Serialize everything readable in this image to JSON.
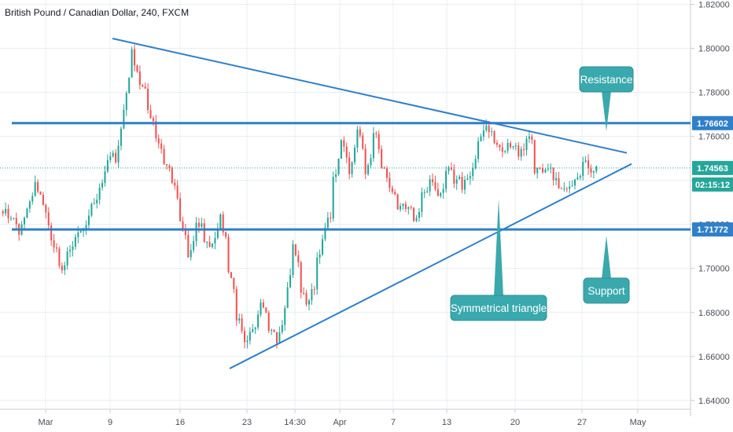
{
  "chart_data": {
    "type": "candlestick",
    "title": "British Pound / Canadian Dollar, 240, FXCM",
    "y_axis": {
      "ticks": [
        "1.82000",
        "1.80000",
        "1.78000",
        "1.76000",
        "1.74000",
        "1.72000",
        "1.70000",
        "1.68000",
        "1.66000",
        "1.64000"
      ],
      "range": [
        1.636,
        1.822
      ]
    },
    "x_axis": {
      "ticks": [
        "Mar",
        "9",
        "16",
        "23",
        "14:30",
        "Apr",
        "7",
        "13",
        "20",
        "27",
        "May"
      ]
    },
    "current_price": {
      "value": "1.74563",
      "countdown": "02:15:12",
      "color": "#26a69a"
    },
    "horizontal_levels": [
      {
        "label": "1.76602",
        "value": 1.76602,
        "name": "Resistance"
      },
      {
        "label": "1.71772",
        "value": 1.71772,
        "name": "Support"
      }
    ],
    "trendlines": [
      {
        "name": "upper",
        "from": {
          "date": "Mar 9",
          "price": 1.8045
        },
        "to": {
          "date": "Apr 29",
          "price": 1.7525
        }
      },
      {
        "name": "lower",
        "from": {
          "date": "Mar 21",
          "price": 1.6545
        },
        "to": {
          "date": "Apr 29",
          "price": 1.7475
        }
      }
    ],
    "callouts": [
      "Resistance",
      "Support",
      "Symmetrical triangle"
    ],
    "colors": {
      "up": "#26a69a",
      "down": "#ef5350",
      "line": "#2f7fc9",
      "callout": "#3aa9ad",
      "grid": "#e9ecf1"
    },
    "grid": true,
    "path": [
      [
        1.728,
        1.727
      ],
      [
        1.722,
        1.724
      ],
      [
        1.718,
        1.716
      ],
      [
        1.725,
        1.727
      ],
      [
        1.735,
        1.738
      ],
      [
        1.732,
        1.728
      ],
      [
        1.718,
        1.712
      ],
      [
        1.705,
        1.7
      ],
      [
        1.702,
        1.706
      ],
      [
        1.711,
        1.714
      ],
      [
        1.716,
        1.718
      ],
      [
        1.725,
        1.73
      ],
      [
        1.733,
        1.737
      ],
      [
        1.745,
        1.749
      ],
      [
        1.752,
        1.75
      ],
      [
        1.77,
        1.772
      ],
      [
        1.796,
        1.798
      ],
      [
        1.786,
        1.784
      ],
      [
        1.778,
        1.772
      ],
      [
        1.765,
        1.76
      ],
      [
        1.752,
        1.748
      ],
      [
        1.744,
        1.74
      ],
      [
        1.728,
        1.72
      ],
      [
        1.712,
        1.705
      ],
      [
        1.715,
        1.719
      ],
      [
        1.72,
        1.713
      ],
      [
        1.709,
        1.712
      ],
      [
        1.719,
        1.723
      ],
      [
        1.708,
        1.7
      ],
      [
        1.688,
        1.678
      ],
      [
        1.67,
        1.666
      ],
      [
        1.674,
        1.672
      ],
      [
        1.68,
        1.683
      ],
      [
        1.676,
        1.67
      ],
      [
        1.673,
        1.668
      ],
      [
        1.68,
        1.684
      ],
      [
        1.705,
        1.71
      ],
      [
        1.698,
        1.69
      ],
      [
        1.682,
        1.686
      ],
      [
        1.695,
        1.705
      ],
      [
        1.715,
        1.718
      ],
      [
        1.728,
        1.74
      ],
      [
        1.752,
        1.758
      ],
      [
        1.748,
        1.744
      ],
      [
        1.76,
        1.765
      ],
      [
        1.748,
        1.742
      ],
      [
        1.757,
        1.763
      ],
      [
        1.752,
        1.745
      ],
      [
        1.742,
        1.735
      ],
      [
        1.73,
        1.725
      ],
      [
        1.732,
        1.728
      ],
      [
        1.725,
        1.722
      ],
      [
        1.728,
        1.733
      ],
      [
        1.737,
        1.74
      ],
      [
        1.735,
        1.732
      ],
      [
        1.74,
        1.745
      ],
      [
        1.742,
        1.738
      ],
      [
        1.741,
        1.737
      ],
      [
        1.745,
        1.742
      ],
      [
        1.752,
        1.756
      ],
      [
        1.768,
        1.765
      ],
      [
        1.76,
        1.757
      ],
      [
        1.754,
        1.752
      ],
      [
        1.758,
        1.757
      ],
      [
        1.755,
        1.752
      ],
      [
        1.756,
        1.76
      ],
      [
        1.758,
        1.745
      ],
      [
        1.744,
        1.742
      ],
      [
        1.746,
        1.744
      ],
      [
        1.738,
        1.736
      ],
      [
        1.734,
        1.738
      ],
      [
        1.74,
        1.742
      ],
      [
        1.745,
        1.748
      ],
      [
        1.746,
        1.745
      ]
    ]
  }
}
